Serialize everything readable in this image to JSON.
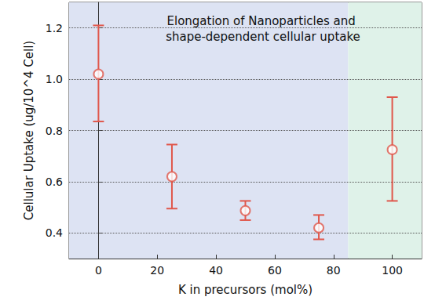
{
  "chart_data": {
    "type": "scatter",
    "title": "Elongation of Nanoparticles and shape-dependent cellular uptake",
    "x_label": "K in precursors (mol%)",
    "y_label": "Cellular Uptake (ug/10^4 Cell)",
    "series": [
      {
        "name": "Cellular Uptake",
        "color": "#e0574b",
        "marker": "circle",
        "x": [
          0,
          25,
          50,
          75,
          100
        ],
        "values": [
          1.02,
          0.62,
          0.487,
          0.42,
          0.725
        ],
        "lower": [
          0.835,
          0.495,
          0.45,
          0.375,
          0.525
        ],
        "upper": [
          1.21,
          0.745,
          0.525,
          0.47,
          0.93
        ]
      }
    ],
    "regions": [
      {
        "x": [
          -10,
          85
        ],
        "color": "#dde3f3"
      },
      {
        "x": [
          85,
          110
        ],
        "color": "#dff2e9"
      }
    ],
    "xlim": [
      -10,
      110
    ],
    "xticks": [
      0,
      20,
      40,
      60,
      80,
      100
    ],
    "ylim": [
      0.3,
      1.3
    ],
    "yticks": [
      0.4,
      0.6,
      0.8,
      {
        "value": 1,
        "label": "1.0"
      },
      1.2
    ],
    "grid": true
  }
}
